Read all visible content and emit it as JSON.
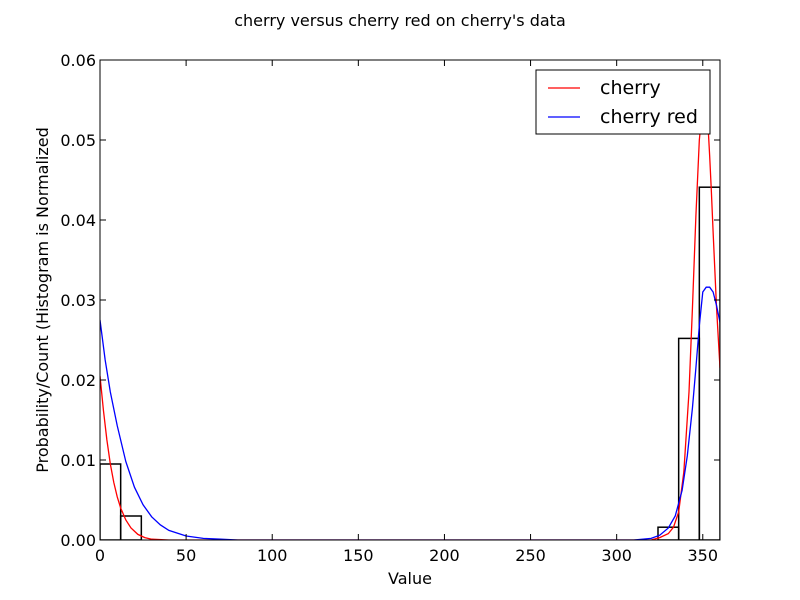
{
  "chart_data": {
    "type": "line",
    "title": "cherry versus cherry red on cherry's data",
    "xlabel": "Value",
    "ylabel": "Probability/Count (Histogram is Normalized",
    "xlim": [
      0,
      360
    ],
    "ylim": [
      0,
      0.06
    ],
    "x_ticks": [
      0,
      50,
      100,
      150,
      200,
      250,
      300,
      350
    ],
    "y_ticks": [
      0.0,
      0.01,
      0.02,
      0.03,
      0.04,
      0.05,
      0.06
    ],
    "y_tick_labels": [
      "0.00",
      "0.01",
      "0.02",
      "0.03",
      "0.04",
      "0.05",
      "0.06"
    ],
    "grid": false,
    "legend_position": "top-right",
    "histogram": {
      "bins": [
        {
          "x0": 0,
          "x1": 12,
          "value": 0.0095
        },
        {
          "x0": 12,
          "x1": 24,
          "value": 0.003
        },
        {
          "x0": 324,
          "x1": 336,
          "value": 0.0016
        },
        {
          "x0": 336,
          "x1": 348,
          "value": 0.0252
        },
        {
          "x0": 348,
          "x1": 360,
          "value": 0.0441
        }
      ],
      "color": "#000000"
    },
    "series": [
      {
        "name": "cherry",
        "color": "#ff0000",
        "x": [
          0,
          2,
          4,
          6,
          8,
          10,
          12,
          15,
          18,
          22,
          26,
          30,
          40,
          50,
          320,
          325,
          330,
          333,
          336,
          339,
          342,
          344,
          346,
          348,
          350,
          351,
          352,
          353,
          354,
          355,
          356,
          358,
          360
        ],
        "y": [
          0.0205,
          0.0162,
          0.0125,
          0.0095,
          0.0072,
          0.0054,
          0.004,
          0.0025,
          0.0015,
          0.0007,
          0.0003,
          0.0001,
          0.0,
          0.0,
          0.0,
          0.0003,
          0.0008,
          0.0016,
          0.0035,
          0.0085,
          0.0185,
          0.029,
          0.0405,
          0.05,
          0.0545,
          0.055,
          0.0545,
          0.052,
          0.048,
          0.0435,
          0.0385,
          0.029,
          0.0215
        ]
      },
      {
        "name": "cherry red",
        "color": "#0000ff",
        "x": [
          0,
          3,
          6,
          10,
          15,
          20,
          25,
          30,
          35,
          40,
          50,
          60,
          70,
          80,
          310,
          320,
          325,
          330,
          334,
          338,
          341,
          344,
          346,
          348,
          350,
          352,
          354,
          356,
          358,
          360
        ],
        "y": [
          0.0275,
          0.0225,
          0.0185,
          0.0143,
          0.0098,
          0.0066,
          0.0044,
          0.0029,
          0.0019,
          0.0012,
          0.0005,
          0.0002,
          0.0001,
          0.0,
          0.0,
          0.0002,
          0.0006,
          0.0015,
          0.003,
          0.0062,
          0.0105,
          0.0165,
          0.0215,
          0.0268,
          0.031,
          0.0316,
          0.0316,
          0.031,
          0.0293,
          0.0272
        ]
      }
    ]
  }
}
